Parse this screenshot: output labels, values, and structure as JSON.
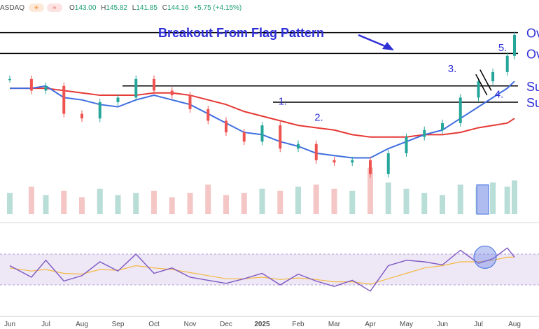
{
  "header": {
    "symbol": "ASDAQ",
    "icons": [
      "sun-icon",
      "wave-icon"
    ],
    "ohlc": [
      {
        "k": "O",
        "v": "143.00"
      },
      {
        "k": "H",
        "v": "145.82"
      },
      {
        "k": "L",
        "v": "141.85"
      },
      {
        "k": "C",
        "v": "144.16"
      }
    ],
    "change": "+5.75 (+4.15%)"
  },
  "annotation_title": "Breakout From Flag Pattern",
  "colors": {
    "up": "#26a69a",
    "down": "#ef5350",
    "ma_short": "#3f6ee0",
    "ma_long": "#e53935",
    "annotation": "#2f2fd8",
    "rsi_line": "#7e57c2",
    "rsi_signal": "#f5b941",
    "rsi_band": "#ede7f6"
  },
  "chart_data": [
    {
      "type": "line",
      "name": "price",
      "x_ticks": [
        "Jun",
        "Jul",
        "Aug",
        "Sep",
        "Oct",
        "Nov",
        "Dec",
        "2025",
        "Feb",
        "Mar",
        "Apr",
        "May",
        "Jun",
        "Jul",
        "Aug"
      ],
      "ylim": [
        80,
        150
      ],
      "x": [
        0,
        0.6,
        1,
        1.5,
        2,
        2.5,
        3,
        3.5,
        4,
        4.5,
        5,
        5.5,
        6,
        6.5,
        7,
        7.5,
        8,
        8.5,
        9,
        9.5,
        10,
        10.5,
        11,
        11.5,
        12,
        12.5,
        13,
        13.4,
        13.8,
        14.0
      ],
      "close": [
        125,
        120,
        122,
        110,
        108,
        115,
        117,
        125,
        120,
        118,
        112,
        107,
        102,
        98,
        105,
        95,
        97,
        90,
        89,
        90,
        84,
        93,
        100,
        103,
        106,
        117,
        124,
        128,
        135,
        144
      ],
      "series": [
        {
          "name": "",
          "values": [
            121,
            121,
            122,
            117,
            116,
            114,
            113,
            116,
            118,
            116,
            114,
            110,
            106,
            102,
            101,
            98,
            96,
            93,
            92,
            91,
            91,
            95,
            98,
            101,
            103,
            108,
            113,
            117,
            121,
            124
          ]
        },
        {
          "name": "",
          "values": [
            121,
            121,
            121,
            120,
            119,
            118,
            118,
            118,
            119,
            119,
            118,
            116,
            114,
            111,
            109,
            107,
            105,
            104,
            103,
            101,
            100,
            100,
            100,
            101,
            101,
            102,
            104,
            105,
            106,
            108
          ]
        }
      ],
      "volume": [
        1.0,
        1.3,
        0.9,
        1.1,
        0.8,
        1.2,
        0.9,
        1.0,
        1.1,
        0.8,
        1.0,
        1.4,
        0.9,
        1.0,
        1.2,
        1.1,
        1.3,
        1.4,
        1.2,
        1.1,
        2.2,
        1.5,
        1.2,
        1.0,
        0.9,
        1.4,
        1.3,
        1.5,
        1.3,
        1.6
      ],
      "horizontal_levels": [
        {
          "value": 145,
          "label": "Ov"
        },
        {
          "value": 136,
          "label": "Ov"
        },
        {
          "value": 122,
          "label": "Su"
        },
        {
          "value": 115,
          "label": "Su"
        }
      ],
      "annotations": [
        "1.",
        "2.",
        "3.",
        "4.",
        "5."
      ]
    },
    {
      "type": "line",
      "name": "rsi",
      "ylim": [
        0,
        100
      ],
      "band": [
        30,
        70
      ],
      "series": [
        {
          "name": "",
          "values": [
            55,
            40,
            62,
            35,
            42,
            60,
            48,
            70,
            45,
            52,
            40,
            36,
            32,
            38,
            45,
            30,
            44,
            35,
            28,
            36,
            22,
            55,
            62,
            60,
            56,
            75,
            58,
            64,
            78,
            66
          ]
        },
        {
          "name": "",
          "values": [
            52,
            48,
            50,
            45,
            44,
            50,
            49,
            55,
            52,
            50,
            46,
            42,
            38,
            38,
            40,
            37,
            39,
            37,
            34,
            34,
            31,
            38,
            45,
            52,
            55,
            60,
            60,
            62,
            66,
            66
          ]
        }
      ]
    }
  ]
}
